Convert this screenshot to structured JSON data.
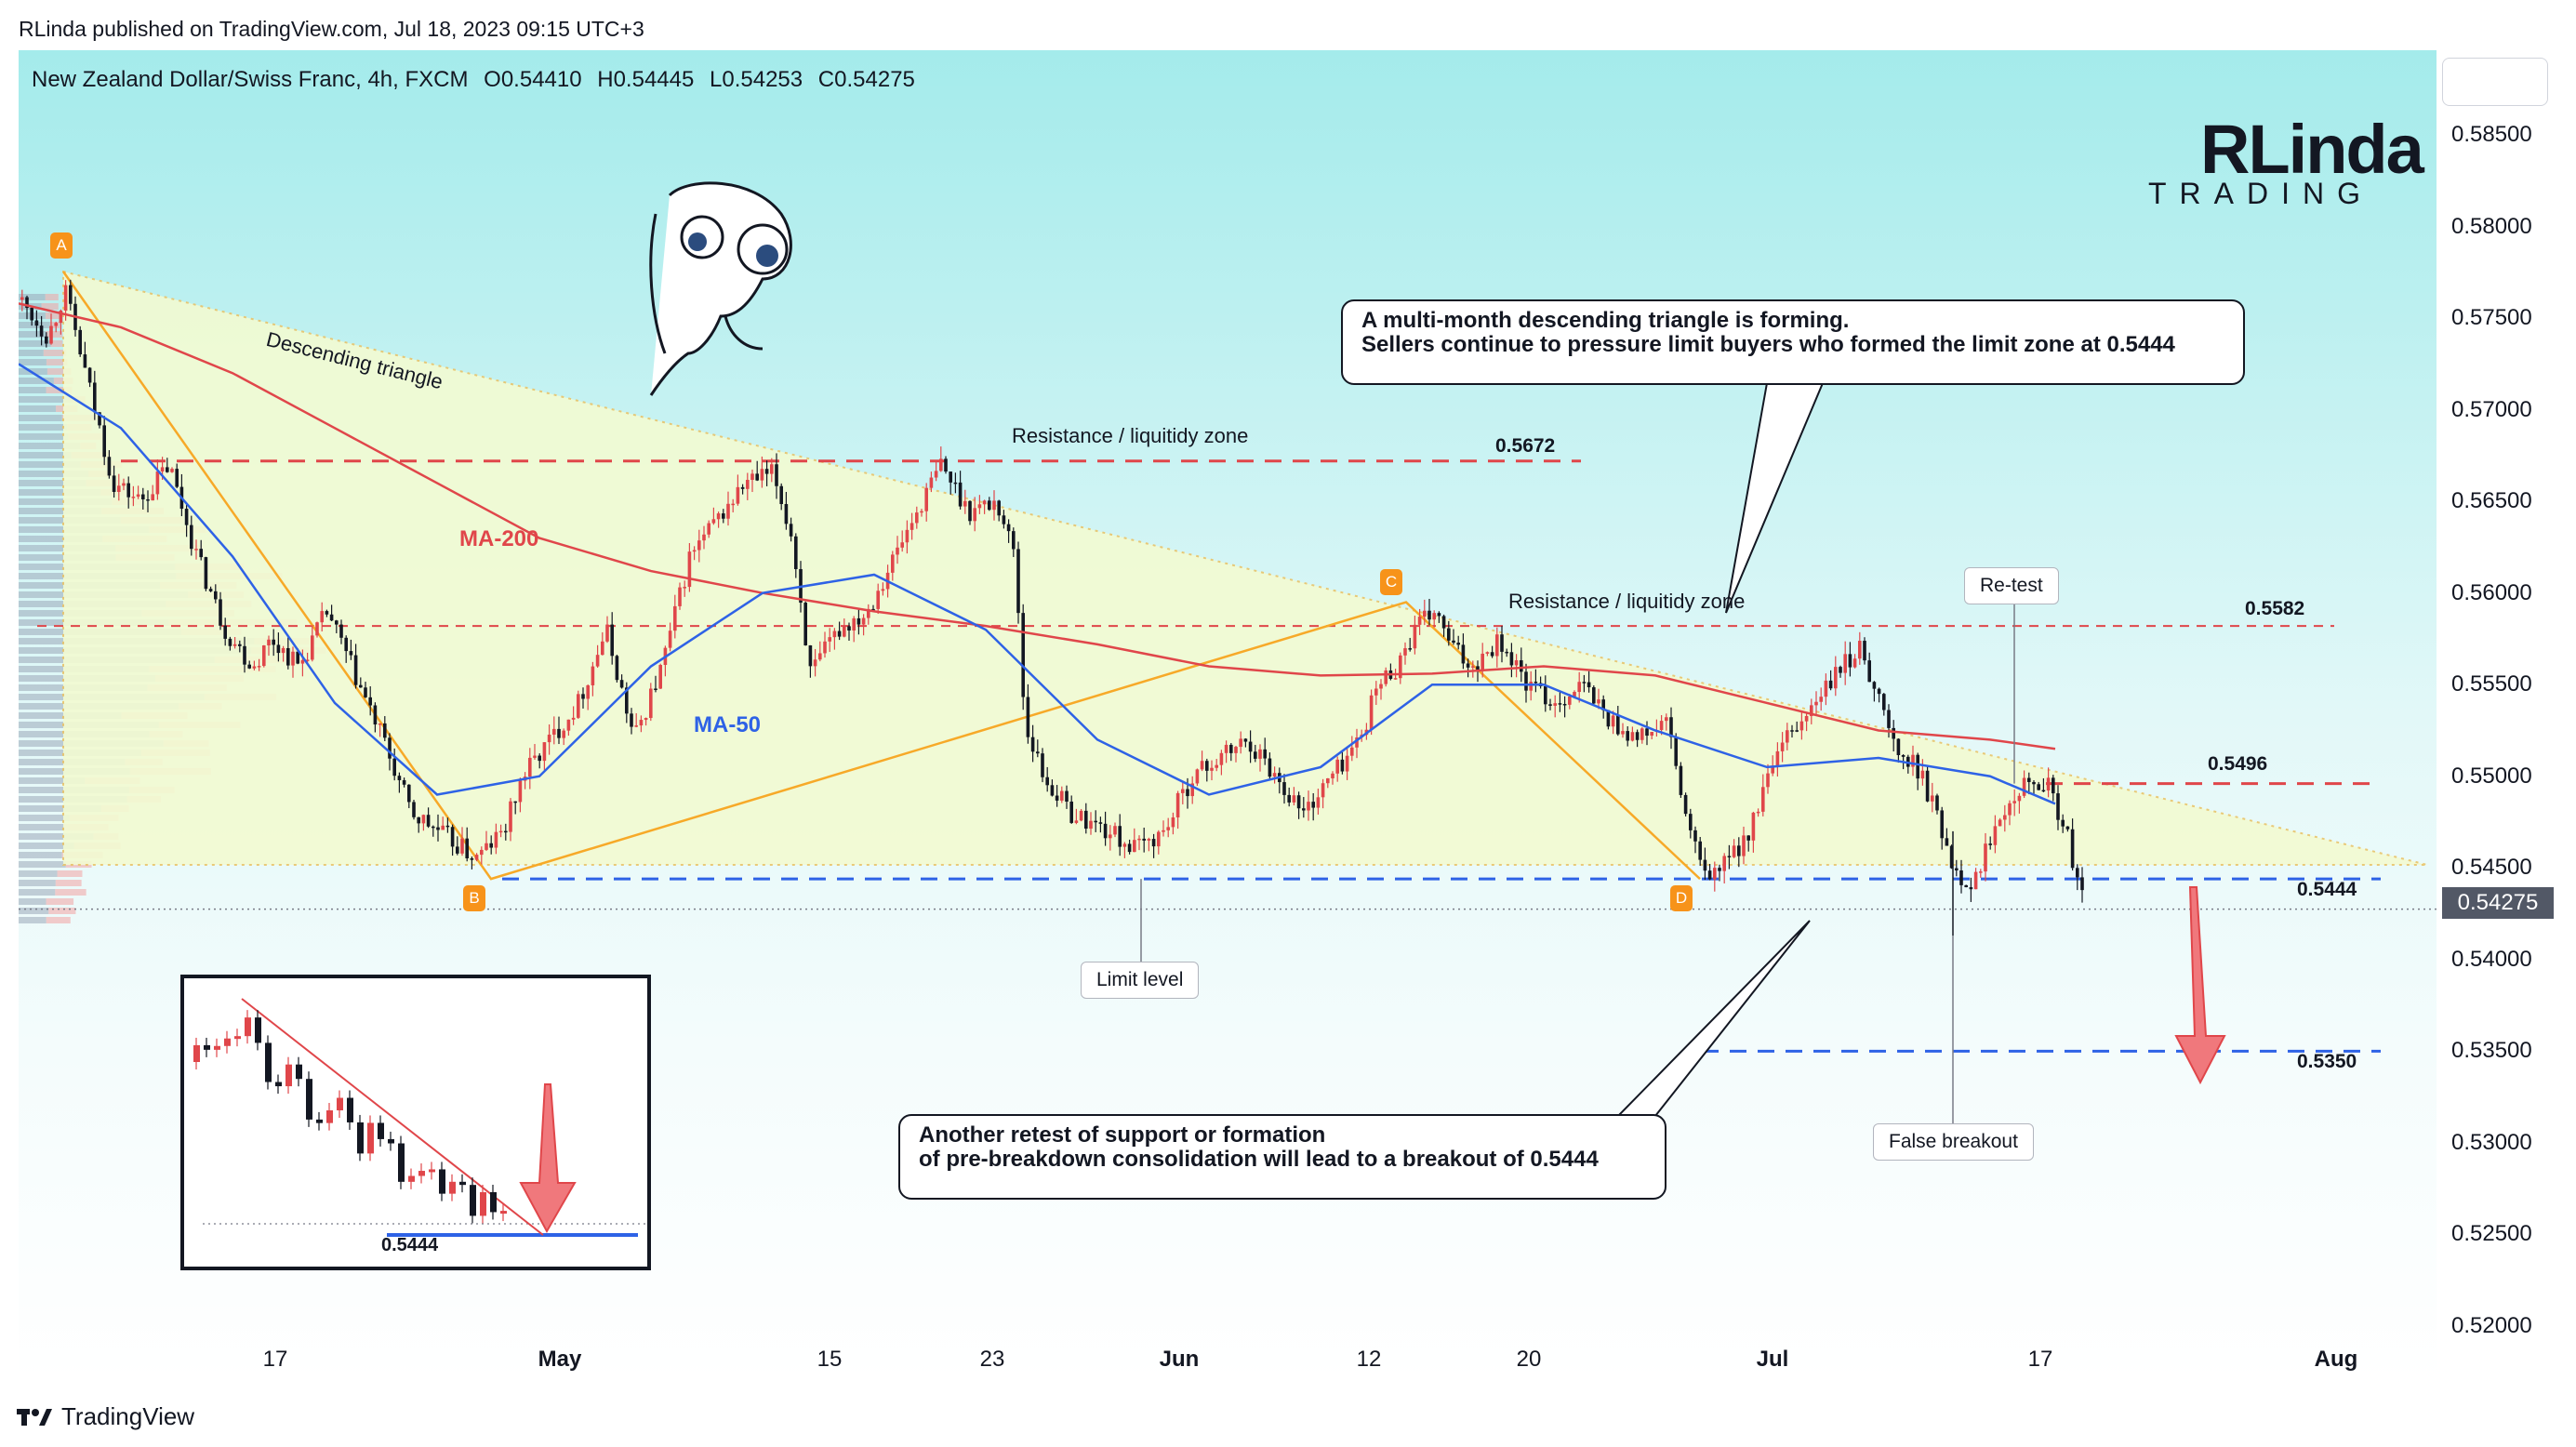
{
  "header": {
    "published_by": "RLinda published on TradingView.com, Jul 18, 2023 09:15 UTC+3"
  },
  "symbol": {
    "name": "New Zealand Dollar/Swiss Franc, 4h, FXCM",
    "open": "O0.54410",
    "high": "H0.54445",
    "low": "L0.54253",
    "close": "C0.54275"
  },
  "logo": {
    "name": "RLinda",
    "sub": "TRADING"
  },
  "price_axis": {
    "ticks": [
      "0.58500",
      "0.58000",
      "0.57500",
      "0.57000",
      "0.56500",
      "0.56000",
      "0.55500",
      "0.55000",
      "0.54500",
      "0.54000",
      "0.53500",
      "0.53000",
      "0.52500",
      "0.52000"
    ],
    "current_price": "0.54275"
  },
  "time_axis": {
    "ticks": [
      {
        "label": "17",
        "bold": false
      },
      {
        "label": "May",
        "bold": true
      },
      {
        "label": "15",
        "bold": false
      },
      {
        "label": "23",
        "bold": false
      },
      {
        "label": "Jun",
        "bold": true
      },
      {
        "label": "12",
        "bold": false
      },
      {
        "label": "20",
        "bold": false
      },
      {
        "label": "Jul",
        "bold": true
      },
      {
        "label": "17",
        "bold": false
      },
      {
        "label": "Aug",
        "bold": true
      }
    ]
  },
  "annotations": {
    "triangle_label": "Descending triangle",
    "ma200_label": "MA-200",
    "ma50_label": "MA-50",
    "zone1": "Resistance / liquitidy zone",
    "zone2": "Resistance / liquitidy zone",
    "level_5672": "0.5672",
    "level_5582": "0.5582",
    "level_5496": "0.5496",
    "level_5444": "0.5444",
    "level_5350": "0.5350",
    "limit_level": "Limit level",
    "retest": "Re-test",
    "false_breakout": "False breakout",
    "point_a": "A",
    "point_b": "B",
    "point_c": "C",
    "point_d": "D",
    "callout_top_line1": "A multi-month descending triangle is forming.",
    "callout_top_line2": "Sellers continue to pressure limit buyers who formed the limit zone at 0.5444",
    "callout_bottom_line1": "Another retest of support or formation",
    "callout_bottom_line2": "of pre-breakdown consolidation will lead to a breakout of 0.5444",
    "inset_label": "0.5444"
  },
  "colors": {
    "bg_top": "#a8ecec",
    "bg_bottom": "#ffffff",
    "triangle_fill": "#f3fbd2",
    "bull": "#e0464a",
    "bear": "#131722",
    "ma200": "#e0464a",
    "ma50": "#2e62e6",
    "resistance": "#e0464a",
    "support": "#2e62e6",
    "pattern": "#f7a928"
  },
  "chart_data": {
    "type": "candlestick",
    "ylim": [
      0.52,
      0.588
    ],
    "series": [
      {
        "name": "MA-200",
        "values": [
          0.5758,
          0.5745,
          0.572,
          0.569,
          0.566,
          0.563,
          0.5612,
          0.56,
          0.559,
          0.5582,
          0.5572,
          0.556,
          0.5555,
          0.5556,
          0.556,
          0.5555,
          0.554,
          0.5525,
          0.552,
          0.5515
        ]
      },
      {
        "name": "MA-50",
        "values": [
          0.5725,
          0.569,
          0.562,
          0.554,
          0.549,
          0.55,
          0.556,
          0.56,
          0.561,
          0.558,
          0.552,
          0.549,
          0.5505,
          0.555,
          0.555,
          0.5525,
          0.5505,
          0.551,
          0.55,
          0.5485
        ]
      }
    ],
    "levels": [
      {
        "label": "Resistance / liquitidy zone",
        "value": 0.5672
      },
      {
        "label": "Resistance / liquitidy zone",
        "value": 0.5582
      },
      {
        "value": 0.5496
      },
      {
        "value": 0.5444
      },
      {
        "value": 0.535
      }
    ],
    "pattern_points": [
      {
        "label": "A",
        "value": 0.5775
      },
      {
        "label": "B",
        "value": 0.5444
      },
      {
        "label": "C",
        "value": 0.5595
      },
      {
        "label": "D",
        "value": 0.5444
      }
    ]
  }
}
